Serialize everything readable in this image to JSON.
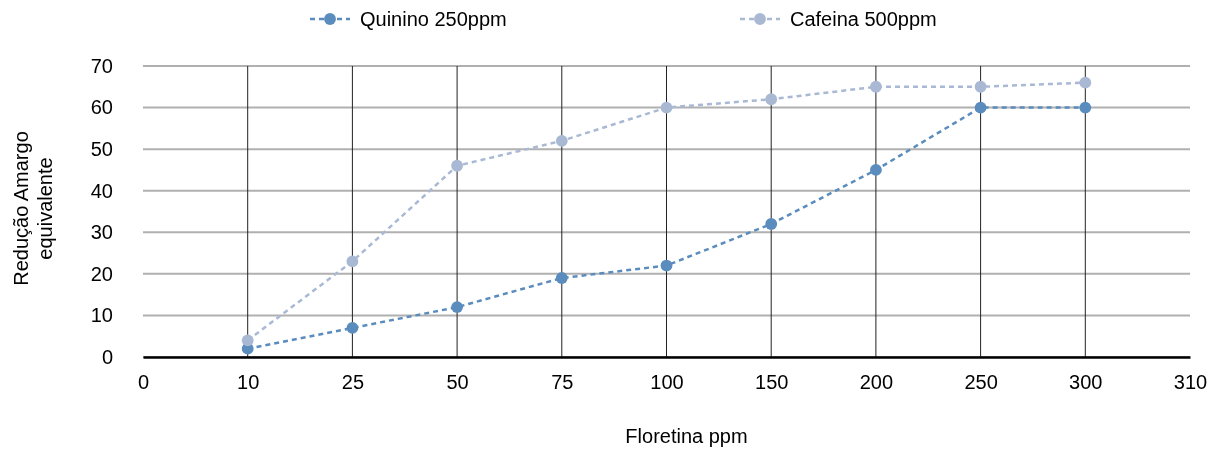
{
  "chart_data": {
    "type": "line",
    "xlabel": "Floretina ppm",
    "ylabel": "Redução Amargo equivalente",
    "categories": [
      "0",
      "10",
      "25",
      "50",
      "75",
      "100",
      "150",
      "200",
      "250",
      "300",
      "310"
    ],
    "series": [
      {
        "name": "Quinino 250ppm",
        "color": "#5b8cbe",
        "values": [
          null,
          2,
          7,
          12,
          19,
          22,
          32,
          45,
          60,
          60,
          null
        ]
      },
      {
        "name": "Cafeina 500ppm",
        "color": "#a9b9d4",
        "values": [
          null,
          4,
          23,
          46,
          52,
          60,
          62,
          65,
          65,
          66,
          null
        ]
      }
    ],
    "ylim": [
      0,
      70
    ],
    "yticks": [
      0,
      10,
      20,
      30,
      40,
      50,
      60,
      70
    ],
    "grid": true,
    "legend": "top",
    "marker": "circle",
    "line_style": "dashed"
  }
}
